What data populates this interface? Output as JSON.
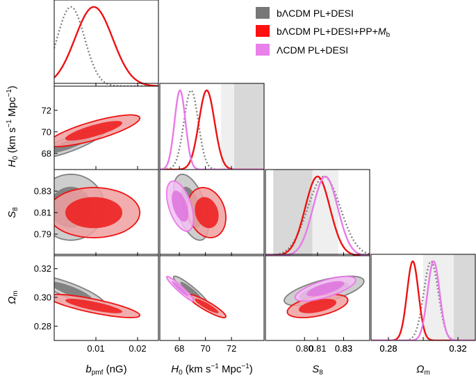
{
  "chart_data": {
    "type": "corner",
    "parameters": [
      {
        "key": "bpmf",
        "label_main": "b",
        "label_sub": "pmf",
        "label_unit": " (nG)",
        "range": [
          0,
          0.025
        ],
        "ticks": [
          0.01,
          0.02
        ],
        "tick_labels": [
          "0.01",
          "0.02"
        ]
      },
      {
        "key": "H0",
        "label_main": "H",
        "label_sub": "0",
        "label_unit": " (km s",
        "label_sup": "−1",
        "label_unit2": " Mpc",
        "label_sup2": "−1",
        "label_close": ")",
        "range": [
          66.5,
          74.5
        ],
        "ticks": [
          68,
          70,
          72
        ],
        "tick_labels": [
          "68",
          "70",
          "72"
        ]
      },
      {
        "key": "S8",
        "label_main": "S",
        "label_sub": "8",
        "range": [
          0.77,
          0.85
        ],
        "ticks": [
          0.79,
          0.81,
          0.83
        ],
        "tick_labels": [
          "0.79",
          "0.81",
          "0.83"
        ]
      },
      {
        "key": "Om",
        "label_main": "Ω",
        "label_sub": "m",
        "range": [
          0.27,
          0.33
        ],
        "ticks": [
          0.28,
          0.3,
          0.32
        ],
        "tick_labels": [
          "0.28",
          "0.30",
          "0.32"
        ]
      }
    ],
    "bottom_ticks_om": [
      "0.28",
      "0.32"
    ],
    "bottom_ticks_s8": [
      "0.80",
      "0.83"
    ],
    "series": [
      {
        "name_main": "bΛCDM PL+DESI",
        "color": "#808080",
        "fill_outer": "#c6c6c6",
        "fill_inner": "#7a7a7a",
        "dash": true,
        "means": {
          "bpmf": 0.004,
          "H0": 68.9,
          "S8": 0.815,
          "Om": 0.3045
        },
        "sig": {
          "bpmf": 0.0033,
          "H0": 0.55,
          "S8": 0.0125,
          "Om": 0.0042
        },
        "corr": {
          "bpmf-H0": 0.85,
          "bpmf-S8": 0.0,
          "bpmf-Om": -0.85,
          "H0-S8": -0.5,
          "H0-Om": -0.93,
          "S8-Om": 0.65
        }
      },
      {
        "name_main": "bΛCDM PL+DESI+PP+",
        "name_italic": "M",
        "name_sub": "b",
        "color": "#ee1111",
        "fill_outer": "#f0a0a0",
        "fill_inner": "#ee2222",
        "dash": false,
        "means": {
          "bpmf": 0.0095,
          "H0": 70.1,
          "S8": 0.81,
          "Om": 0.294
        },
        "sig": {
          "bpmf": 0.0045,
          "H0": 0.6,
          "S8": 0.0095,
          "Om": 0.0033
        },
        "corr": {
          "bpmf-H0": 0.8,
          "bpmf-S8": 0.0,
          "bpmf-Om": -0.8,
          "H0-S8": -0.2,
          "H0-Om": -0.9,
          "S8-Om": 0.5
        }
      },
      {
        "name_main": "ΛCDM PL+DESI",
        "color": "#e87ae8",
        "fill_outer": "#f3c0f3",
        "fill_inner": "#e078e0",
        "dash": false,
        "means": {
          "H0": 68.05,
          "S8": 0.816,
          "Om": 0.306
        },
        "sig": {
          "H0": 0.42,
          "S8": 0.0095,
          "Om": 0.0035
        },
        "corr": {
          "H0-S8": -0.5,
          "H0-Om": -0.95,
          "S8-Om": 0.7
        }
      }
    ],
    "bands": {
      "H0": [
        [
          72.2,
          74.5,
          "#d8d8d8"
        ],
        [
          71.2,
          72.2,
          "#efefef"
        ]
      ],
      "S8": [
        [
          0.776,
          0.806,
          "#d8d8d8"
        ],
        [
          0.806,
          0.816,
          "#efefef"
        ],
        [
          0.816,
          0.826,
          "#efefef"
        ]
      ],
      "Om": [
        [
          0.3175,
          0.33,
          "#d8d8d8"
        ],
        [
          0.3,
          0.3175,
          "#efefef"
        ]
      ]
    }
  }
}
